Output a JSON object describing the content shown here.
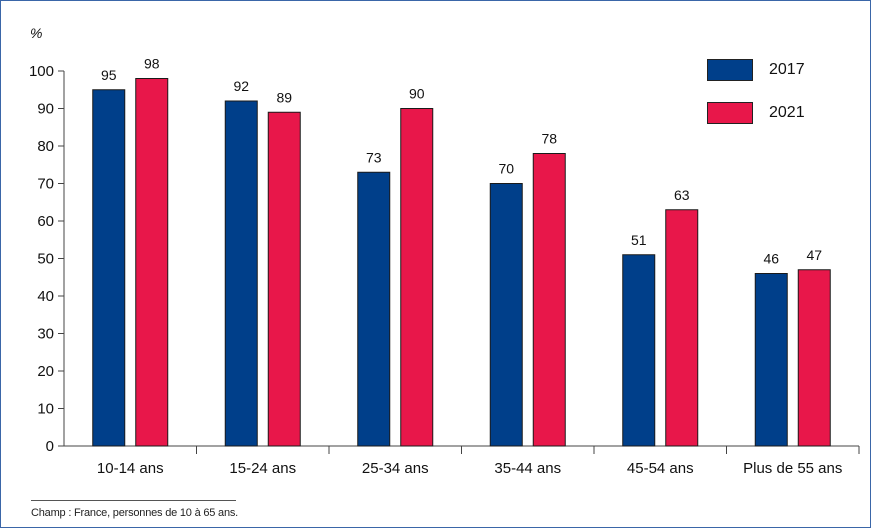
{
  "unit_label": "%",
  "footnote": "Champ : France, personnes de 10 à 65 ans.",
  "colors": {
    "2017": "#003f8a",
    "2021": "#e8174a",
    "axis": "#444444",
    "frame": "#3a66a8"
  },
  "legend": [
    {
      "label": "2017",
      "color": "#003f8a"
    },
    {
      "label": "2021",
      "color": "#e8174a"
    }
  ],
  "chart_data": {
    "type": "bar",
    "categories": [
      "10-14 ans",
      "15-24 ans",
      "25-34 ans",
      "35-44 ans",
      "45-54 ans",
      "Plus de 55 ans"
    ],
    "series": [
      {
        "name": "2017",
        "values": [
          95,
          92,
          73,
          70,
          51,
          46
        ],
        "color": "#003f8a"
      },
      {
        "name": "2021",
        "values": [
          98,
          89,
          90,
          78,
          63,
          47
        ],
        "color": "#e8174a"
      }
    ],
    "ylabel": "%",
    "ylim": [
      0,
      100
    ],
    "yticks": [
      0,
      10,
      20,
      30,
      40,
      50,
      60,
      70,
      80,
      90,
      100
    ],
    "grid": false,
    "legend_position": "top-right"
  }
}
